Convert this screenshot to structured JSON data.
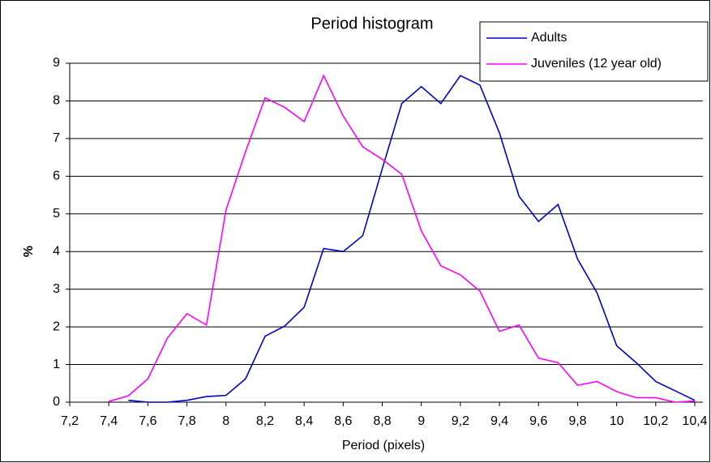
{
  "chart_data": {
    "type": "line",
    "title": "Period histogram",
    "xlabel": "Period  (pixels)",
    "ylabel": "%",
    "xlim": [
      7.2,
      10.4
    ],
    "ylim": [
      0,
      9
    ],
    "xticks": [
      {
        "value": 7.2,
        "label": "7,2"
      },
      {
        "value": 7.4,
        "label": "7,4"
      },
      {
        "value": 7.6,
        "label": "7,6"
      },
      {
        "value": 7.8,
        "label": "7,8"
      },
      8,
      {
        "value": 8.2,
        "label": "8,2"
      },
      {
        "value": 8.4,
        "label": "8,4"
      },
      {
        "value": 8.6,
        "label": "8,6"
      },
      {
        "value": 8.8,
        "label": "8,8"
      },
      9,
      {
        "value": 9.2,
        "label": "9,2"
      },
      {
        "value": 9.4,
        "label": "9,4"
      },
      {
        "value": 9.6,
        "label": "9,6"
      },
      {
        "value": 9.8,
        "label": "9,8"
      },
      10,
      {
        "value": 10.2,
        "label": "10,2"
      },
      {
        "value": 10.4,
        "label": "10,4"
      }
    ],
    "yticks": [
      0,
      1,
      2,
      3,
      4,
      5,
      6,
      7,
      8,
      9
    ],
    "grid": true,
    "legend": "upper right",
    "series": [
      {
        "name": "Adults",
        "color": "#0000cc",
        "x": [
          7.5,
          7.6,
          7.7,
          7.8,
          7.9,
          8.0,
          8.1,
          8.2,
          8.3,
          8.4,
          8.5,
          8.6,
          8.7,
          8.8,
          8.9,
          9.0,
          9.1,
          9.2,
          9.3,
          9.4,
          9.5,
          9.6,
          9.7,
          9.8,
          9.9,
          10.0,
          10.1,
          10.2,
          10.3,
          10.4
        ],
        "values": [
          0.05,
          0,
          0,
          0.05,
          0.15,
          0.18,
          0.62,
          1.75,
          2.02,
          2.52,
          4.08,
          4.0,
          4.42,
          6.2,
          7.93,
          8.38,
          7.93,
          8.67,
          8.42,
          7.15,
          5.47,
          4.8,
          5.25,
          3.8,
          2.9,
          1.5,
          1.05,
          0.55,
          0.3,
          0.05
        ]
      },
      {
        "name": "Juveniles (12 year old)",
        "color": "#ff00ff",
        "x": [
          7.4,
          7.5,
          7.6,
          7.7,
          7.8,
          7.9,
          8.0,
          8.1,
          8.2,
          8.3,
          8.4,
          8.5,
          8.6,
          8.7,
          8.8,
          8.9,
          9.0,
          9.1,
          9.2,
          9.3,
          9.4,
          9.5,
          9.6,
          9.7,
          9.8,
          9.9,
          10.0,
          10.1,
          10.2,
          10.3,
          10.4
        ],
        "values": [
          0.02,
          0.17,
          0.62,
          1.7,
          2.35,
          2.05,
          5.1,
          6.65,
          8.08,
          7.83,
          7.45,
          8.67,
          7.6,
          6.78,
          6.45,
          6.05,
          4.55,
          3.62,
          3.38,
          2.95,
          1.88,
          2.05,
          1.17,
          1.05,
          0.45,
          0.55,
          0.28,
          0.12,
          0.12,
          0,
          0.03
        ]
      }
    ]
  }
}
